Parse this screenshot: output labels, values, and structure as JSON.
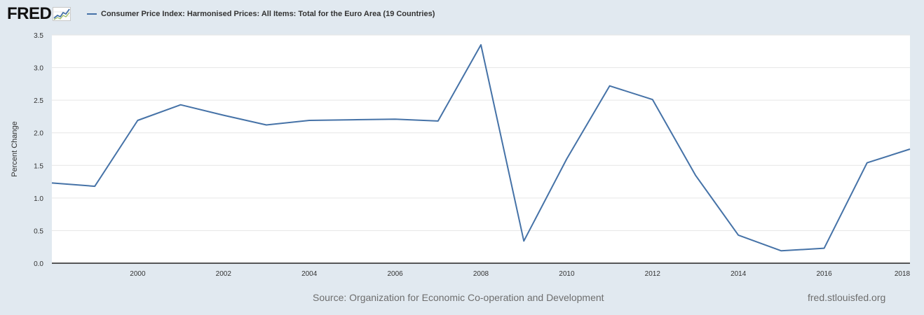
{
  "header": {
    "logo_text": "FRED",
    "logo_icon": "chart-line-icon"
  },
  "chart_data": {
    "type": "line",
    "title": "",
    "xlabel": "",
    "ylabel": "Percent Change",
    "x": [
      1998,
      1999,
      2000,
      2001,
      2002,
      2003,
      2004,
      2005,
      2006,
      2007,
      2008,
      2009,
      2010,
      2011,
      2012,
      2013,
      2014,
      2015,
      2016,
      2017,
      2018
    ],
    "series": [
      {
        "name": "Consumer Price Index: Harmonised Prices: All Items: Total for the Euro Area (19 Countries)",
        "values": [
          1.23,
          1.18,
          2.19,
          2.43,
          2.27,
          2.12,
          2.19,
          2.2,
          2.21,
          2.18,
          3.35,
          0.34,
          1.6,
          2.72,
          2.51,
          1.35,
          0.43,
          0.19,
          0.23,
          1.54,
          1.75
        ],
        "color": "#4572a7"
      }
    ],
    "xlim": [
      1998,
      2018
    ],
    "ylim": [
      0,
      3.5
    ],
    "yticks": [
      "0.0",
      "0.5",
      "1.0",
      "1.5",
      "2.0",
      "2.5",
      "3.0",
      "3.5"
    ],
    "xticks": [
      "2000",
      "2002",
      "2004",
      "2006",
      "2008",
      "2010",
      "2012",
      "2014",
      "2016",
      "2018"
    ],
    "grid": true,
    "legend": "top-left"
  },
  "footer": {
    "source": "Source: Organization for Economic Co-operation and Development",
    "url": "fred.stlouisfed.org"
  }
}
